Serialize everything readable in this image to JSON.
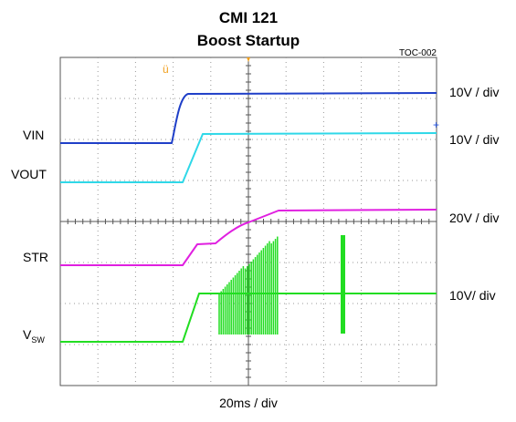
{
  "header": {
    "title": "CMI 121",
    "subtitle": "Boost Startup",
    "code": "TOC-002"
  },
  "channels": [
    {
      "label": "VIN",
      "scale": "10V / div"
    },
    {
      "label": "VOUT",
      "scale": "10V / div"
    },
    {
      "label": "STR",
      "scale": "20V / div"
    },
    {
      "label": "V",
      "label_sub": "SW",
      "scale": "10V/ div"
    }
  ],
  "timebase": "20ms / div"
}
